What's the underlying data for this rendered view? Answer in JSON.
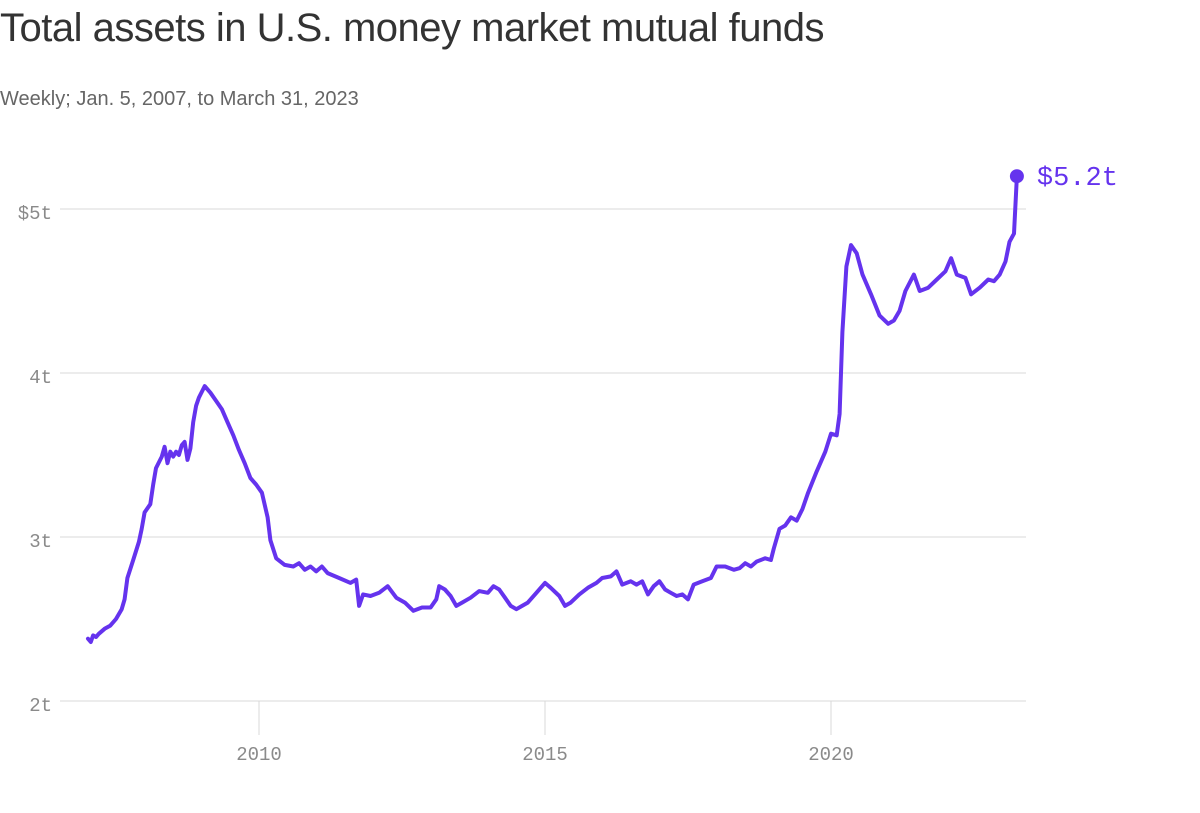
{
  "title": "Total assets in U.S. money market mutual funds",
  "subtitle": "Weekly; Jan. 5, 2007, to March 31, 2023",
  "colors": {
    "line": "#6533ee",
    "grid": "#d8d8d8",
    "tick_text": "#8a8a8a",
    "title_text": "#333333",
    "subtitle_text": "#666666"
  },
  "chart_data": {
    "type": "line",
    "title": "Total assets in U.S. money market mutual funds",
    "subtitle": "Weekly; Jan. 5, 2007, to March 31, 2023",
    "xlabel": "",
    "ylabel": "",
    "x_unit": "year",
    "y_unit": "trillion USD",
    "xlim": [
      2006.7,
      2023.7
    ],
    "ylim": [
      2,
      5.55
    ],
    "grid": true,
    "x_ticks": [
      2010,
      2015,
      2020
    ],
    "x_tick_labels": [
      "2010",
      "2015",
      "2020"
    ],
    "y_ticks": [
      2,
      3,
      4,
      5
    ],
    "y_tick_labels": [
      "2t",
      "3t",
      "4t",
      "$5t"
    ],
    "end_label": "$5.2t",
    "series": [
      {
        "values": [
          [
            2007.01,
            2.38
          ],
          [
            2007.06,
            2.36
          ],
          [
            2007.1,
            2.4
          ],
          [
            2007.15,
            2.39
          ],
          [
            2007.2,
            2.41
          ],
          [
            2007.3,
            2.44
          ],
          [
            2007.4,
            2.46
          ],
          [
            2007.5,
            2.5
          ],
          [
            2007.6,
            2.56
          ],
          [
            2007.65,
            2.62
          ],
          [
            2007.7,
            2.75
          ],
          [
            2007.8,
            2.86
          ],
          [
            2007.9,
            2.97
          ],
          [
            2007.95,
            3.05
          ],
          [
            2008.0,
            3.15
          ],
          [
            2008.1,
            3.2
          ],
          [
            2008.15,
            3.32
          ],
          [
            2008.2,
            3.42
          ],
          [
            2008.3,
            3.49
          ],
          [
            2008.35,
            3.55
          ],
          [
            2008.4,
            3.45
          ],
          [
            2008.45,
            3.52
          ],
          [
            2008.5,
            3.49
          ],
          [
            2008.55,
            3.52
          ],
          [
            2008.6,
            3.5
          ],
          [
            2008.65,
            3.56
          ],
          [
            2008.7,
            3.58
          ],
          [
            2008.75,
            3.47
          ],
          [
            2008.8,
            3.54
          ],
          [
            2008.85,
            3.7
          ],
          [
            2008.9,
            3.8
          ],
          [
            2008.95,
            3.85
          ],
          [
            2009.05,
            3.92
          ],
          [
            2009.15,
            3.88
          ],
          [
            2009.25,
            3.83
          ],
          [
            2009.35,
            3.78
          ],
          [
            2009.45,
            3.7
          ],
          [
            2009.55,
            3.62
          ],
          [
            2009.65,
            3.53
          ],
          [
            2009.75,
            3.45
          ],
          [
            2009.85,
            3.36
          ],
          [
            2009.95,
            3.32
          ],
          [
            2010.05,
            3.27
          ],
          [
            2010.15,
            3.12
          ],
          [
            2010.2,
            2.98
          ],
          [
            2010.3,
            2.87
          ],
          [
            2010.45,
            2.83
          ],
          [
            2010.6,
            2.82
          ],
          [
            2010.7,
            2.84
          ],
          [
            2010.8,
            2.8
          ],
          [
            2010.9,
            2.82
          ],
          [
            2011.0,
            2.79
          ],
          [
            2011.1,
            2.82
          ],
          [
            2011.2,
            2.78
          ],
          [
            2011.4,
            2.75
          ],
          [
            2011.6,
            2.72
          ],
          [
            2011.7,
            2.74
          ],
          [
            2011.75,
            2.58
          ],
          [
            2011.82,
            2.65
          ],
          [
            2011.95,
            2.64
          ],
          [
            2012.1,
            2.66
          ],
          [
            2012.25,
            2.7
          ],
          [
            2012.4,
            2.63
          ],
          [
            2012.55,
            2.6
          ],
          [
            2012.7,
            2.55
          ],
          [
            2012.85,
            2.57
          ],
          [
            2013.0,
            2.57
          ],
          [
            2013.1,
            2.62
          ],
          [
            2013.15,
            2.7
          ],
          [
            2013.25,
            2.68
          ],
          [
            2013.35,
            2.64
          ],
          [
            2013.45,
            2.58
          ],
          [
            2013.55,
            2.6
          ],
          [
            2013.7,
            2.63
          ],
          [
            2013.85,
            2.67
          ],
          [
            2014.0,
            2.66
          ],
          [
            2014.1,
            2.7
          ],
          [
            2014.2,
            2.68
          ],
          [
            2014.3,
            2.63
          ],
          [
            2014.4,
            2.58
          ],
          [
            2014.5,
            2.56
          ],
          [
            2014.6,
            2.58
          ],
          [
            2014.7,
            2.6
          ],
          [
            2014.85,
            2.66
          ],
          [
            2015.0,
            2.72
          ],
          [
            2015.1,
            2.69
          ],
          [
            2015.25,
            2.64
          ],
          [
            2015.35,
            2.58
          ],
          [
            2015.45,
            2.6
          ],
          [
            2015.6,
            2.65
          ],
          [
            2015.75,
            2.69
          ],
          [
            2015.9,
            2.72
          ],
          [
            2016.0,
            2.75
          ],
          [
            2016.15,
            2.76
          ],
          [
            2016.25,
            2.79
          ],
          [
            2016.35,
            2.71
          ],
          [
            2016.5,
            2.73
          ],
          [
            2016.6,
            2.71
          ],
          [
            2016.7,
            2.73
          ],
          [
            2016.8,
            2.65
          ],
          [
            2016.9,
            2.7
          ],
          [
            2017.0,
            2.73
          ],
          [
            2017.1,
            2.68
          ],
          [
            2017.2,
            2.66
          ],
          [
            2017.3,
            2.64
          ],
          [
            2017.4,
            2.65
          ],
          [
            2017.5,
            2.62
          ],
          [
            2017.6,
            2.71
          ],
          [
            2017.75,
            2.73
          ],
          [
            2017.9,
            2.75
          ],
          [
            2018.0,
            2.82
          ],
          [
            2018.15,
            2.82
          ],
          [
            2018.3,
            2.8
          ],
          [
            2018.4,
            2.81
          ],
          [
            2018.5,
            2.84
          ],
          [
            2018.6,
            2.82
          ],
          [
            2018.7,
            2.85
          ],
          [
            2018.85,
            2.87
          ],
          [
            2018.95,
            2.86
          ],
          [
            2019.0,
            2.93
          ],
          [
            2019.1,
            3.05
          ],
          [
            2019.2,
            3.07
          ],
          [
            2019.3,
            3.12
          ],
          [
            2019.4,
            3.1
          ],
          [
            2019.5,
            3.17
          ],
          [
            2019.6,
            3.27
          ],
          [
            2019.75,
            3.4
          ],
          [
            2019.9,
            3.52
          ],
          [
            2020.0,
            3.63
          ],
          [
            2020.1,
            3.62
          ],
          [
            2020.15,
            3.75
          ],
          [
            2020.2,
            4.25
          ],
          [
            2020.27,
            4.65
          ],
          [
            2020.35,
            4.78
          ],
          [
            2020.45,
            4.73
          ],
          [
            2020.55,
            4.6
          ],
          [
            2020.7,
            4.48
          ],
          [
            2020.85,
            4.35
          ],
          [
            2021.0,
            4.3
          ],
          [
            2021.1,
            4.32
          ],
          [
            2021.2,
            4.38
          ],
          [
            2021.3,
            4.5
          ],
          [
            2021.45,
            4.6
          ],
          [
            2021.55,
            4.5
          ],
          [
            2021.7,
            4.52
          ],
          [
            2021.85,
            4.57
          ],
          [
            2022.0,
            4.62
          ],
          [
            2022.1,
            4.7
          ],
          [
            2022.2,
            4.6
          ],
          [
            2022.35,
            4.58
          ],
          [
            2022.45,
            4.48
          ],
          [
            2022.6,
            4.52
          ],
          [
            2022.75,
            4.57
          ],
          [
            2022.85,
            4.56
          ],
          [
            2022.95,
            4.6
          ],
          [
            2023.05,
            4.68
          ],
          [
            2023.12,
            4.8
          ],
          [
            2023.2,
            4.85
          ],
          [
            2023.25,
            5.2
          ]
        ]
      }
    ]
  }
}
